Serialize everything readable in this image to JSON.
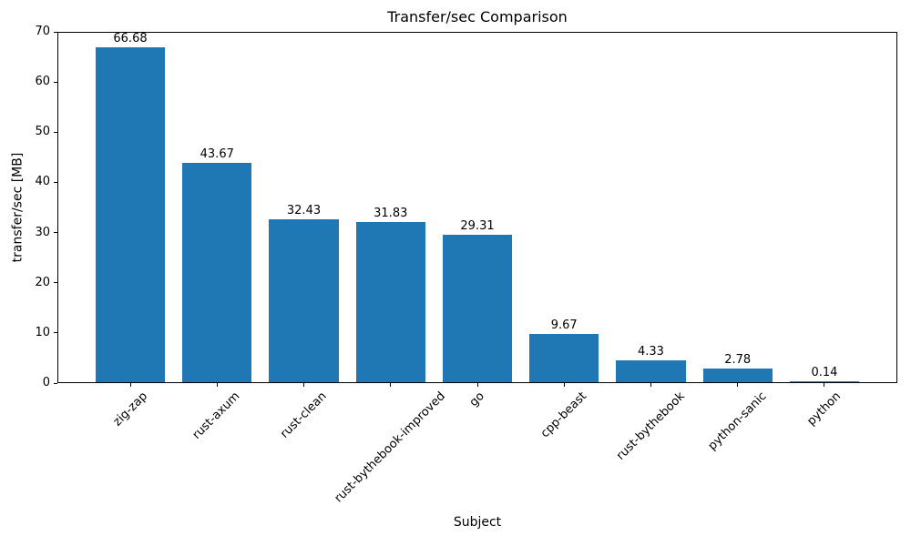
{
  "chart_data": {
    "type": "bar",
    "title": "Transfer/sec Comparison",
    "xlabel": "Subject",
    "ylabel": "transfer/sec [MB]",
    "categories": [
      "zig-zap",
      "rust-axum",
      "rust-clean",
      "rust-bythebook-improved",
      "go",
      "cpp-beast",
      "rust-bythebook",
      "python-sanic",
      "python"
    ],
    "values": [
      66.68,
      43.67,
      32.43,
      31.83,
      29.31,
      9.67,
      4.33,
      2.78,
      0.14
    ],
    "bar_labels": [
      "66.68",
      "43.67",
      "32.43",
      "31.83",
      "29.31",
      "9.67",
      "4.33",
      "2.78",
      "0.14"
    ],
    "ylim": [
      0,
      70
    ],
    "yticks": [
      0,
      10,
      20,
      30,
      40,
      50,
      60,
      70
    ],
    "bar_color": "#1f77b4",
    "bar_width_fraction": 0.8,
    "xtick_rotation_deg": 45,
    "grid": false,
    "legend": "none"
  }
}
